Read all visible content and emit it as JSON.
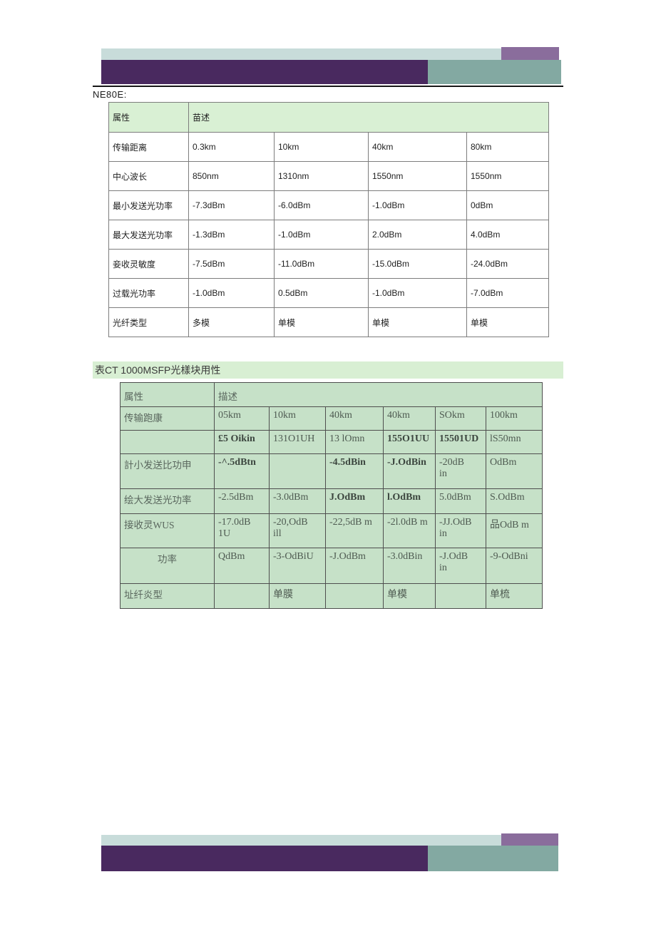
{
  "page": {
    "ne80e_label": "NE80E:",
    "table2_title": "表CT 1000MSFP光樣块用性"
  },
  "colors": {
    "bar_light": "#c8dcda",
    "bar_accent_purple": "#8a6d9c",
    "bar_dark_purple": "#49295f",
    "bar_teal": "#83a9a2",
    "table1_header_green": "#d9f0d4",
    "table2_cell_green": "#c6e1c8",
    "title_band_green": "#d8efd3"
  },
  "table1": {
    "header": [
      "属性",
      "苗述"
    ],
    "rows": [
      {
        "label": "传输距离",
        "values": [
          "0.3km",
          "10km",
          "40km",
          "80km"
        ]
      },
      {
        "label": "中心波长",
        "values": [
          "850nm",
          "1310nm",
          "1550nm",
          "1550nm"
        ]
      },
      {
        "label": "最小发送光功率",
        "values": [
          "-7.3dBm",
          "-6.0dBm",
          "-1.0dBm",
          "0dBm"
        ]
      },
      {
        "label": "最大发送光功率",
        "values": [
          "-1.3dBm",
          "-1.0dBm",
          "2.0dBm",
          "4.0dBm"
        ]
      },
      {
        "label": "妾收灵敏度",
        "values": [
          "-7.5dBm",
          "-11.0dBm",
          "-15.0dBm",
          "-24.0dBm"
        ]
      },
      {
        "label": "过载光功率",
        "values": [
          "-1.0dBm",
          "0.5dBm",
          "-1.0dBm",
          "-7.0dBm"
        ]
      },
      {
        "label": "光纤类型",
        "values": [
          "多模",
          "单模",
          "单模",
          "单模"
        ]
      }
    ]
  },
  "table2": {
    "header": [
      "属性",
      "描述"
    ],
    "rows": [
      {
        "label": "传输跑康",
        "cells": [
          "05km",
          "10km",
          "40km",
          "40km",
          "SOkm",
          "100km"
        ]
      },
      {
        "label": "",
        "cells": [
          {
            "t": "£5 Oikin",
            "b": true
          },
          "131O1UH",
          "13 lOmn",
          {
            "t": "155O1UU",
            "b": true
          },
          {
            "t": "15501UD",
            "b": true
          },
          "lS50mn"
        ]
      },
      {
        "label": "計小发送比功申",
        "cells": [
          {
            "t": "-^.5dBtn",
            "b": true
          },
          "",
          {
            "t": "-4.5dBin",
            "b": true
          },
          {
            "t": "-J.OdBin",
            "b": true
          },
          "-20dB\nin",
          "OdBm"
        ]
      },
      {
        "label": "绘大发送光功率",
        "cells": [
          "-2.5dBm",
          "-3.0dBm",
          {
            "t": "J.OdBm",
            "b": true
          },
          {
            "t": "l.OdBm",
            "b": true
          },
          "5.0dBm",
          "S.OdBm"
        ]
      },
      {
        "label": "接收灵WUS",
        "cells": [
          "-17.0dB\n1U",
          "-20,OdB\nill",
          "-22,5dB m",
          "-2l.0dB m",
          "-JJ.OdB\nin",
          "品OdB m"
        ]
      },
      {
        "label": "功率",
        "label_align": "center",
        "cells": [
          "QdBm",
          "-3-OdBiU",
          "-J.OdBm",
          "-3.0dBin",
          "-J.OdB\nin",
          "-9-OdBni"
        ]
      },
      {
        "label": "址纤炎型",
        "cells": [
          "",
          "单膜",
          "",
          "单模",
          "",
          "单梳"
        ]
      }
    ]
  }
}
